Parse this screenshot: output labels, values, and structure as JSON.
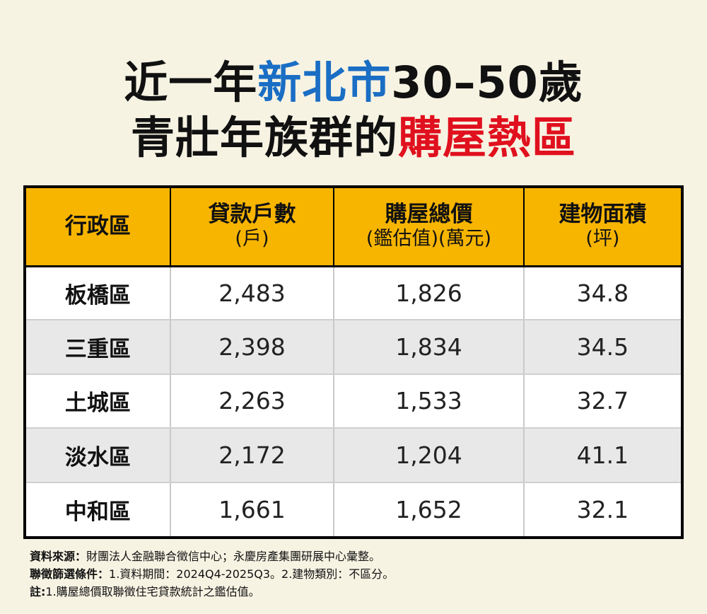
{
  "title": {
    "line1_part1": "近一年",
    "line1_highlight": "新北市",
    "line1_part2": "30–50歲",
    "line2_part1": "青壯年族群的",
    "line2_highlight": "購屋熱區"
  },
  "colors": {
    "background": "#f7f3e3",
    "header": "#f7b500",
    "highlight_blue": "#1a6ec4",
    "highlight_red": "#e0101e",
    "alt_row": "#e8e8e8"
  },
  "chart_data": {
    "type": "table",
    "columns": [
      {
        "label": "行政區",
        "unit": ""
      },
      {
        "label": "貸款戶數",
        "unit": "(戶)"
      },
      {
        "label": "購屋總價",
        "unit": "(鑑估值)(萬元)"
      },
      {
        "label": "建物面積",
        "unit": "(坪)"
      }
    ],
    "rows": [
      [
        "板橋區",
        "2,483",
        "1,826",
        "34.8"
      ],
      [
        "三重區",
        "2,398",
        "1,834",
        "34.5"
      ],
      [
        "土城區",
        "2,263",
        "1,533",
        "32.7"
      ],
      [
        "淡水區",
        "2,172",
        "1,204",
        "41.1"
      ],
      [
        "中和區",
        "1,661",
        "1,652",
        "32.1"
      ]
    ]
  },
  "notes": {
    "source_label": "資料來源：",
    "source_text": "財團法人金融聯合徵信中心；永慶房產集團研展中心彙整。",
    "filter_label": "聯徵篩選條件：",
    "filter_text": "1.資料期間：2024Q4-2025Q3。2.建物類別：不區分。",
    "note_label": "註:",
    "note_text": "1.購屋總價取聯徵住宅貸款統計之鑑估值。"
  }
}
